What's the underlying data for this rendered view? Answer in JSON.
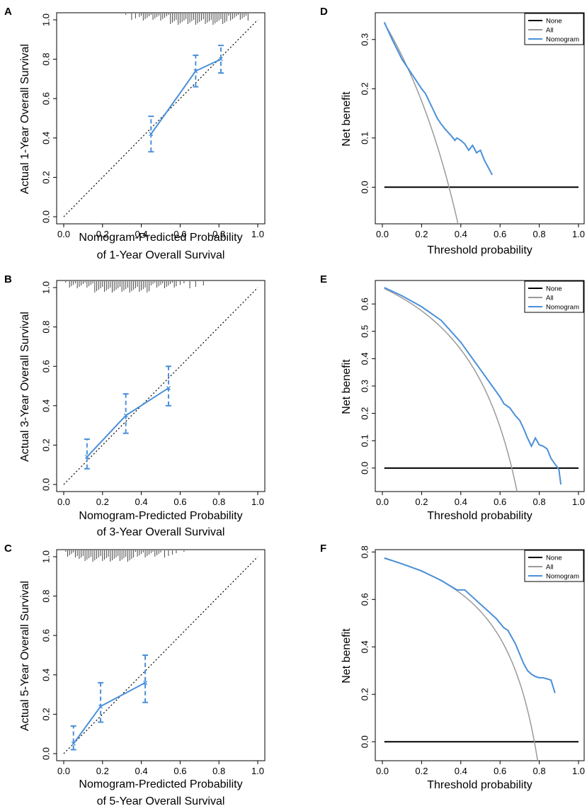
{
  "colors": {
    "nomogram": "#4a90d9",
    "all": "#9a9a9a",
    "none": "#000000",
    "axis": "#000000",
    "ideal": "#000000",
    "rug": "#444444"
  },
  "chart_data": [
    {
      "panel": "A",
      "type": "line",
      "subtype": "calibration",
      "xlabel": "Nomogram-Predicted Probability",
      "xlabel2": "of 1-Year Overall Survival",
      "ylabel": "Actual 1-Year Overall Survival",
      "xlim": [
        0,
        1
      ],
      "ylim": [
        0,
        1
      ],
      "xticks": [
        "0.0",
        "0.2",
        "0.4",
        "0.6",
        "0.8",
        "1.0"
      ],
      "yticks": [
        "0.0",
        "0.2",
        "0.4",
        "0.6",
        "0.8",
        "1.0"
      ],
      "points": [
        {
          "x": 0.45,
          "y": 0.42,
          "lo": 0.33,
          "hi": 0.51
        },
        {
          "x": 0.68,
          "y": 0.74,
          "lo": 0.66,
          "hi": 0.82
        },
        {
          "x": 0.81,
          "y": 0.8,
          "lo": 0.73,
          "hi": 0.87
        }
      ],
      "rug": [
        0.32,
        0.35,
        0.37,
        0.39,
        0.4,
        0.41,
        0.42,
        0.43,
        0.44,
        0.45,
        0.46,
        0.47,
        0.48,
        0.49,
        0.5,
        0.51,
        0.52,
        0.53,
        0.54,
        0.55,
        0.56,
        0.57,
        0.58,
        0.59,
        0.6,
        0.61,
        0.62,
        0.63,
        0.64,
        0.65,
        0.66,
        0.67,
        0.68,
        0.69,
        0.7,
        0.71,
        0.72,
        0.73,
        0.74,
        0.75,
        0.76,
        0.77,
        0.78,
        0.79,
        0.8,
        0.81,
        0.82,
        0.83,
        0.84,
        0.85,
        0.86,
        0.87,
        0.88,
        0.89,
        0.9,
        0.91,
        0.92,
        0.93,
        0.94,
        0.95
      ],
      "rug_x": 0.7
    },
    {
      "panel": "B",
      "type": "line",
      "subtype": "calibration",
      "xlabel": "Nomogram-Predicted Probability",
      "xlabel2": "of 3-Year Overall Survival",
      "ylabel": "Actual 3-Year Overall Survival",
      "xlim": [
        0,
        1
      ],
      "ylim": [
        0,
        1
      ],
      "xticks": [
        "0.0",
        "0.2",
        "0.4",
        "0.6",
        "0.8",
        "1.0"
      ],
      "yticks": [
        "0.0",
        "0.2",
        "0.4",
        "0.6",
        "0.8",
        "1.0"
      ],
      "points": [
        {
          "x": 0.12,
          "y": 0.14,
          "lo": 0.08,
          "hi": 0.23
        },
        {
          "x": 0.32,
          "y": 0.35,
          "lo": 0.26,
          "hi": 0.46
        },
        {
          "x": 0.54,
          "y": 0.49,
          "lo": 0.4,
          "hi": 0.6
        }
      ],
      "rug": [
        0.01,
        0.03,
        0.04,
        0.05,
        0.06,
        0.07,
        0.08,
        0.09,
        0.1,
        0.11,
        0.12,
        0.13,
        0.14,
        0.15,
        0.16,
        0.17,
        0.18,
        0.19,
        0.2,
        0.21,
        0.22,
        0.23,
        0.24,
        0.25,
        0.26,
        0.27,
        0.28,
        0.29,
        0.3,
        0.31,
        0.32,
        0.33,
        0.34,
        0.35,
        0.36,
        0.37,
        0.38,
        0.39,
        0.4,
        0.41,
        0.42,
        0.43,
        0.44,
        0.45,
        0.46,
        0.47,
        0.48,
        0.49,
        0.5,
        0.51,
        0.52,
        0.53,
        0.54,
        0.55,
        0.56,
        0.57,
        0.58,
        0.6,
        0.62,
        0.65,
        0.68,
        0.72
      ],
      "rug_x": 0.3
    },
    {
      "panel": "C",
      "type": "line",
      "subtype": "calibration",
      "xlabel": "Nomogram-Predicted Probability",
      "xlabel2": "of 5-Year Overall Survival",
      "ylabel": "Actual 5-Year Overall Survival",
      "xlim": [
        0,
        1
      ],
      "ylim": [
        0,
        1
      ],
      "xticks": [
        "0.0",
        "0.2",
        "0.4",
        "0.6",
        "0.8",
        "1.0"
      ],
      "yticks": [
        "0.0",
        "0.2",
        "0.4",
        "0.6",
        "0.8",
        "1.0"
      ],
      "points": [
        {
          "x": 0.05,
          "y": 0.05,
          "lo": 0.02,
          "hi": 0.14
        },
        {
          "x": 0.19,
          "y": 0.24,
          "lo": 0.16,
          "hi": 0.36
        },
        {
          "x": 0.42,
          "y": 0.36,
          "lo": 0.26,
          "hi": 0.5
        }
      ],
      "rug": [
        0.01,
        0.02,
        0.03,
        0.04,
        0.05,
        0.06,
        0.07,
        0.08,
        0.09,
        0.1,
        0.11,
        0.12,
        0.13,
        0.14,
        0.15,
        0.16,
        0.17,
        0.18,
        0.19,
        0.2,
        0.21,
        0.22,
        0.23,
        0.24,
        0.25,
        0.26,
        0.27,
        0.28,
        0.29,
        0.3,
        0.31,
        0.32,
        0.33,
        0.34,
        0.35,
        0.36,
        0.37,
        0.38,
        0.39,
        0.4,
        0.41,
        0.42,
        0.43,
        0.44,
        0.45,
        0.46,
        0.47,
        0.48,
        0.49,
        0.5,
        0.52,
        0.54,
        0.56,
        0.58,
        0.62
      ],
      "rug_x": 0.22
    },
    {
      "panel": "D",
      "type": "line",
      "subtype": "decision-curve",
      "xlabel": "Threshold probability",
      "ylabel": "Net benefit",
      "xlim": [
        0,
        1
      ],
      "ylim": [
        -0.06,
        0.34
      ],
      "xticks": [
        0,
        0.2,
        0.4,
        0.6,
        0.8,
        1.0
      ],
      "xtick_labels": [
        "0.0",
        "0.2",
        "0.4",
        "0.6",
        "0.8",
        "1.0"
      ],
      "yticks": [
        0.0,
        0.1,
        0.2,
        0.3
      ],
      "ytick_labels": [
        "0.0",
        "0.1",
        "0.2",
        "0.3"
      ],
      "legend": [
        "None",
        "All",
        "Nomogram"
      ],
      "legend_position": "top-right",
      "prevalence": 0.34,
      "nomogram": {
        "x": [
          0.01,
          0.05,
          0.1,
          0.15,
          0.2,
          0.22,
          0.25,
          0.28,
          0.3,
          0.32,
          0.35,
          0.37,
          0.38,
          0.4,
          0.42,
          0.44,
          0.46,
          0.48,
          0.5,
          0.52,
          0.54,
          0.56
        ],
        "y": [
          0.335,
          0.3,
          0.26,
          0.23,
          0.2,
          0.19,
          0.165,
          0.14,
          0.128,
          0.118,
          0.105,
          0.095,
          0.1,
          0.095,
          0.088,
          0.075,
          0.085,
          0.07,
          0.075,
          0.055,
          0.04,
          0.025
        ]
      }
    },
    {
      "panel": "E",
      "type": "line",
      "subtype": "decision-curve",
      "xlabel": "Threshold probability",
      "ylabel": "Net benefit",
      "xlim": [
        0,
        1
      ],
      "ylim": [
        -0.06,
        0.66
      ],
      "xticks": [
        0,
        0.2,
        0.4,
        0.6,
        0.8,
        1.0
      ],
      "xtick_labels": [
        "0.0",
        "0.2",
        "0.4",
        "0.6",
        "0.8",
        "1.0"
      ],
      "yticks": [
        0.0,
        0.1,
        0.2,
        0.3,
        0.4,
        0.5,
        0.6
      ],
      "ytick_labels": [
        "0.0",
        "0.1",
        "0.2",
        "0.3",
        "0.4",
        "0.5",
        "0.6"
      ],
      "legend": [
        "None",
        "All",
        "Nomogram"
      ],
      "legend_position": "top-right",
      "prevalence": 0.66,
      "nomogram": {
        "x": [
          0.01,
          0.1,
          0.2,
          0.3,
          0.4,
          0.45,
          0.5,
          0.55,
          0.6,
          0.62,
          0.65,
          0.68,
          0.7,
          0.72,
          0.74,
          0.76,
          0.78,
          0.8,
          0.82,
          0.84,
          0.86,
          0.88,
          0.9,
          0.91
        ],
        "y": [
          0.66,
          0.63,
          0.59,
          0.54,
          0.46,
          0.41,
          0.36,
          0.31,
          0.26,
          0.235,
          0.22,
          0.19,
          0.175,
          0.145,
          0.11,
          0.08,
          0.11,
          0.085,
          0.08,
          0.07,
          0.035,
          0.015,
          -0.005,
          -0.06
        ]
      }
    },
    {
      "panel": "F",
      "type": "line",
      "subtype": "decision-curve",
      "xlabel": "Threshold probability",
      "ylabel": "Net benefit",
      "xlim": [
        0,
        1
      ],
      "ylim": [
        -0.05,
        0.78
      ],
      "xticks": [
        0,
        0.2,
        0.4,
        0.6,
        0.8,
        1.0
      ],
      "xtick_labels": [
        "0.0",
        "0.2",
        "0.4",
        "0.6",
        "0.8",
        "1.0"
      ],
      "yticks": [
        0.0,
        0.2,
        0.4,
        0.6,
        0.8
      ],
      "ytick_labels": [
        "0.0",
        "0.2",
        "0.4",
        "0.6",
        "0.8"
      ],
      "legend": [
        "None",
        "All",
        "Nomogram"
      ],
      "legend_position": "top-right",
      "prevalence": 0.775,
      "nomogram": {
        "x": [
          0.01,
          0.1,
          0.2,
          0.3,
          0.38,
          0.42,
          0.46,
          0.5,
          0.54,
          0.58,
          0.62,
          0.64,
          0.66,
          0.68,
          0.7,
          0.72,
          0.74,
          0.76,
          0.78,
          0.8,
          0.82,
          0.84,
          0.86,
          0.88
        ],
        "y": [
          0.775,
          0.75,
          0.72,
          0.68,
          0.64,
          0.64,
          0.61,
          0.58,
          0.55,
          0.52,
          0.48,
          0.47,
          0.44,
          0.41,
          0.37,
          0.33,
          0.3,
          0.285,
          0.275,
          0.27,
          0.27,
          0.265,
          0.26,
          0.205
        ]
      }
    }
  ]
}
